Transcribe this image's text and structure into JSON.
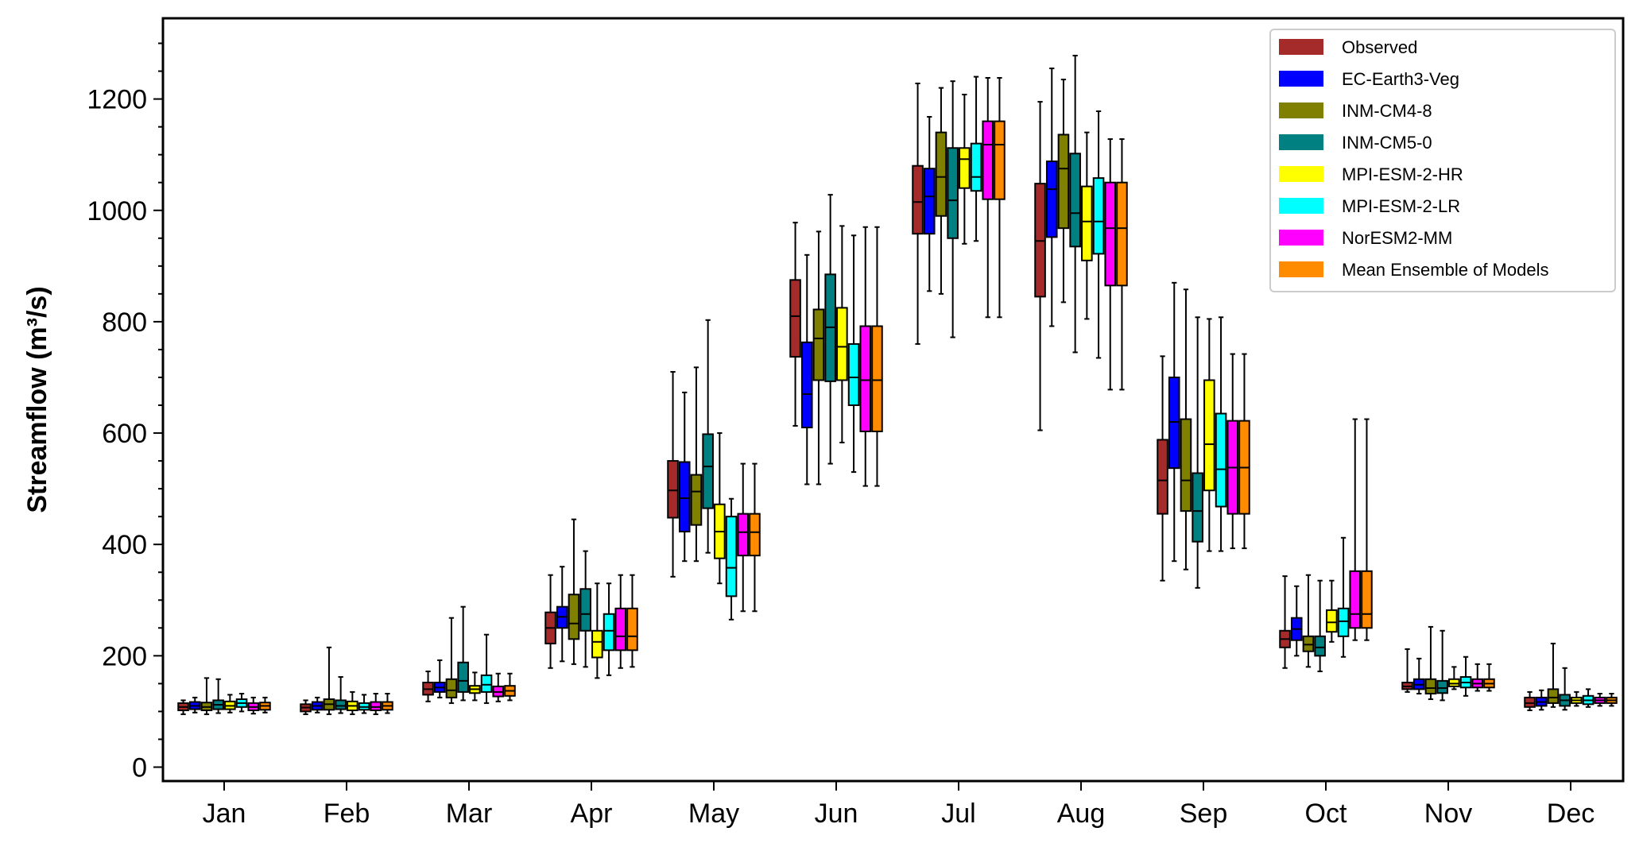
{
  "chart_data": {
    "type": "box",
    "title": "",
    "xlabel": "",
    "ylabel": "Streamflow (m³/s)",
    "ylim": [
      -25,
      1345
    ],
    "yticks": [
      0,
      200,
      400,
      600,
      800,
      1000,
      1200
    ],
    "yticks_minor_step": 50,
    "grid": false,
    "legend": {
      "position": "top-right"
    },
    "categories": [
      "Jan",
      "Feb",
      "Mar",
      "Apr",
      "May",
      "Jun",
      "Jul",
      "Aug",
      "Sep",
      "Oct",
      "Nov",
      "Dec"
    ],
    "series": [
      {
        "name": "Observed",
        "color": "#a52a2a",
        "boxes": [
          {
            "whislo": 95,
            "q1": 102,
            "med": 108,
            "q3": 115,
            "whishi": 120
          },
          {
            "whislo": 95,
            "q1": 100,
            "med": 107,
            "q3": 113,
            "whishi": 120
          },
          {
            "whislo": 118,
            "q1": 130,
            "med": 140,
            "q3": 152,
            "whishi": 172
          },
          {
            "whislo": 178,
            "q1": 222,
            "med": 250,
            "q3": 278,
            "whishi": 345
          },
          {
            "whislo": 342,
            "q1": 448,
            "med": 497,
            "q3": 550,
            "whishi": 710
          },
          {
            "whislo": 613,
            "q1": 737,
            "med": 810,
            "q3": 875,
            "whishi": 978
          },
          {
            "whislo": 760,
            "q1": 958,
            "med": 1015,
            "q3": 1080,
            "whishi": 1228
          },
          {
            "whislo": 605,
            "q1": 845,
            "med": 945,
            "q3": 1048,
            "whishi": 1195
          },
          {
            "whislo": 335,
            "q1": 455,
            "med": 515,
            "q3": 588,
            "whishi": 738
          },
          {
            "whislo": 178,
            "q1": 215,
            "med": 230,
            "q3": 245,
            "whishi": 343
          },
          {
            "whislo": 135,
            "q1": 140,
            "med": 145,
            "q3": 152,
            "whishi": 212
          },
          {
            "whislo": 102,
            "q1": 108,
            "med": 115,
            "q3": 125,
            "whishi": 135
          }
        ]
      },
      {
        "name": "EC-Earth3-Veg",
        "color": "#0000ff",
        "boxes": [
          {
            "whislo": 98,
            "q1": 104,
            "med": 110,
            "q3": 117,
            "whishi": 125
          },
          {
            "whislo": 98,
            "q1": 103,
            "med": 110,
            "q3": 117,
            "whishi": 125
          },
          {
            "whislo": 125,
            "q1": 135,
            "med": 143,
            "q3": 152,
            "whishi": 192
          },
          {
            "whislo": 190,
            "q1": 250,
            "med": 270,
            "q3": 288,
            "whishi": 360
          },
          {
            "whislo": 370,
            "q1": 423,
            "med": 483,
            "q3": 548,
            "whishi": 673
          },
          {
            "whislo": 508,
            "q1": 610,
            "med": 670,
            "q3": 763,
            "whishi": 920
          },
          {
            "whislo": 855,
            "q1": 958,
            "med": 1025,
            "q3": 1075,
            "whishi": 1168
          },
          {
            "whislo": 792,
            "q1": 952,
            "med": 1038,
            "q3": 1088,
            "whishi": 1255
          },
          {
            "whislo": 370,
            "q1": 537,
            "med": 620,
            "q3": 700,
            "whishi": 870
          },
          {
            "whislo": 200,
            "q1": 228,
            "med": 248,
            "q3": 268,
            "whishi": 325
          },
          {
            "whislo": 132,
            "q1": 140,
            "med": 148,
            "q3": 158,
            "whishi": 195
          },
          {
            "whislo": 103,
            "q1": 110,
            "med": 117,
            "q3": 125,
            "whishi": 138
          }
        ]
      },
      {
        "name": "INM-CM4-8",
        "color": "#808000",
        "boxes": [
          {
            "whislo": 95,
            "q1": 102,
            "med": 108,
            "q3": 116,
            "whishi": 160
          },
          {
            "whislo": 95,
            "q1": 103,
            "med": 113,
            "q3": 122,
            "whishi": 215
          },
          {
            "whislo": 115,
            "q1": 125,
            "med": 138,
            "q3": 158,
            "whishi": 268
          },
          {
            "whislo": 185,
            "q1": 230,
            "med": 258,
            "q3": 310,
            "whishi": 445
          },
          {
            "whislo": 370,
            "q1": 435,
            "med": 495,
            "q3": 525,
            "whishi": 718
          },
          {
            "whislo": 508,
            "q1": 695,
            "med": 770,
            "q3": 822,
            "whishi": 962
          },
          {
            "whislo": 850,
            "q1": 990,
            "med": 1060,
            "q3": 1140,
            "whishi": 1220
          },
          {
            "whislo": 835,
            "q1": 968,
            "med": 1075,
            "q3": 1136,
            "whishi": 1235
          },
          {
            "whislo": 355,
            "q1": 460,
            "med": 515,
            "q3": 625,
            "whishi": 858
          },
          {
            "whislo": 180,
            "q1": 208,
            "med": 220,
            "q3": 235,
            "whishi": 345
          },
          {
            "whislo": 122,
            "q1": 132,
            "med": 142,
            "q3": 158,
            "whishi": 252
          },
          {
            "whislo": 108,
            "q1": 115,
            "med": 125,
            "q3": 140,
            "whishi": 222
          }
        ]
      },
      {
        "name": "INM-CM5-0",
        "color": "#008080",
        "boxes": [
          {
            "whislo": 97,
            "q1": 104,
            "med": 112,
            "q3": 120,
            "whishi": 158
          },
          {
            "whislo": 97,
            "q1": 104,
            "med": 110,
            "q3": 120,
            "whishi": 162
          },
          {
            "whislo": 120,
            "q1": 135,
            "med": 155,
            "q3": 188,
            "whishi": 288
          },
          {
            "whislo": 180,
            "q1": 245,
            "med": 275,
            "q3": 320,
            "whishi": 388
          },
          {
            "whislo": 385,
            "q1": 465,
            "med": 540,
            "q3": 598,
            "whishi": 803
          },
          {
            "whislo": 545,
            "q1": 693,
            "med": 790,
            "q3": 885,
            "whishi": 1028
          },
          {
            "whislo": 772,
            "q1": 950,
            "med": 1018,
            "q3": 1112,
            "whishi": 1232
          },
          {
            "whislo": 745,
            "q1": 935,
            "med": 995,
            "q3": 1102,
            "whishi": 1278
          },
          {
            "whislo": 322,
            "q1": 405,
            "med": 460,
            "q3": 528,
            "whishi": 808
          },
          {
            "whislo": 172,
            "q1": 200,
            "med": 215,
            "q3": 235,
            "whishi": 335
          },
          {
            "whislo": 120,
            "q1": 133,
            "med": 142,
            "q3": 155,
            "whishi": 245
          },
          {
            "whislo": 103,
            "q1": 110,
            "med": 120,
            "q3": 130,
            "whishi": 178
          }
        ]
      },
      {
        "name": "MPI-ESM-2-HR",
        "color": "#ffff00",
        "boxes": [
          {
            "whislo": 98,
            "q1": 104,
            "med": 110,
            "q3": 118,
            "whishi": 130
          },
          {
            "whislo": 95,
            "q1": 102,
            "med": 110,
            "q3": 118,
            "whishi": 135
          },
          {
            "whislo": 120,
            "q1": 133,
            "med": 140,
            "q3": 146,
            "whishi": 170
          },
          {
            "whislo": 160,
            "q1": 197,
            "med": 225,
            "q3": 245,
            "whishi": 330
          },
          {
            "whislo": 330,
            "q1": 375,
            "med": 423,
            "q3": 472,
            "whishi": 600
          },
          {
            "whislo": 583,
            "q1": 695,
            "med": 755,
            "q3": 825,
            "whishi": 972
          },
          {
            "whislo": 940,
            "q1": 1040,
            "med": 1092,
            "q3": 1112,
            "whishi": 1208
          },
          {
            "whislo": 805,
            "q1": 910,
            "med": 980,
            "q3": 1043,
            "whishi": 1140
          },
          {
            "whislo": 388,
            "q1": 497,
            "med": 580,
            "q3": 695,
            "whishi": 805
          },
          {
            "whislo": 225,
            "q1": 243,
            "med": 260,
            "q3": 282,
            "whishi": 335
          },
          {
            "whislo": 140,
            "q1": 145,
            "med": 150,
            "q3": 158,
            "whishi": 180
          },
          {
            "whislo": 110,
            "q1": 115,
            "med": 120,
            "q3": 125,
            "whishi": 135
          }
        ]
      },
      {
        "name": "MPI-ESM-2-LR",
        "color": "#00ffff",
        "boxes": [
          {
            "whislo": 100,
            "q1": 108,
            "med": 115,
            "q3": 122,
            "whishi": 132
          },
          {
            "whislo": 97,
            "q1": 103,
            "med": 108,
            "q3": 115,
            "whishi": 130
          },
          {
            "whislo": 115,
            "q1": 135,
            "med": 148,
            "q3": 165,
            "whishi": 238
          },
          {
            "whislo": 165,
            "q1": 210,
            "med": 245,
            "q3": 275,
            "whishi": 330
          },
          {
            "whislo": 265,
            "q1": 307,
            "med": 358,
            "q3": 450,
            "whishi": 482
          },
          {
            "whislo": 530,
            "q1": 650,
            "med": 700,
            "q3": 760,
            "whishi": 955
          },
          {
            "whislo": 945,
            "q1": 1035,
            "med": 1060,
            "q3": 1120,
            "whishi": 1240
          },
          {
            "whislo": 735,
            "q1": 922,
            "med": 980,
            "q3": 1058,
            "whishi": 1178
          },
          {
            "whislo": 388,
            "q1": 468,
            "med": 535,
            "q3": 635,
            "whishi": 808
          },
          {
            "whislo": 198,
            "q1": 235,
            "med": 262,
            "q3": 285,
            "whishi": 412
          },
          {
            "whislo": 128,
            "q1": 143,
            "med": 152,
            "q3": 162,
            "whishi": 198
          },
          {
            "whislo": 108,
            "q1": 113,
            "med": 120,
            "q3": 128,
            "whishi": 140
          }
        ]
      },
      {
        "name": "NorESM2-MM",
        "color": "#ff00ff",
        "boxes": [
          {
            "whislo": 96,
            "q1": 102,
            "med": 108,
            "q3": 115,
            "whishi": 125
          },
          {
            "whislo": 95,
            "q1": 102,
            "med": 108,
            "q3": 117,
            "whishi": 132
          },
          {
            "whislo": 118,
            "q1": 127,
            "med": 135,
            "q3": 145,
            "whishi": 168
          },
          {
            "whislo": 178,
            "q1": 210,
            "med": 235,
            "q3": 285,
            "whishi": 345
          },
          {
            "whislo": 280,
            "q1": 380,
            "med": 422,
            "q3": 455,
            "whishi": 545
          },
          {
            "whislo": 505,
            "q1": 603,
            "med": 695,
            "q3": 792,
            "whishi": 970
          },
          {
            "whislo": 808,
            "q1": 1020,
            "med": 1118,
            "q3": 1160,
            "whishi": 1238
          },
          {
            "whislo": 678,
            "q1": 865,
            "med": 968,
            "q3": 1050,
            "whishi": 1128
          },
          {
            "whislo": 393,
            "q1": 455,
            "med": 538,
            "q3": 622,
            "whishi": 742
          },
          {
            "whislo": 228,
            "q1": 250,
            "med": 275,
            "q3": 352,
            "whishi": 625
          },
          {
            "whislo": 137,
            "q1": 143,
            "med": 150,
            "q3": 158,
            "whishi": 185
          },
          {
            "whislo": 110,
            "q1": 115,
            "med": 120,
            "q3": 125,
            "whishi": 132
          }
        ]
      },
      {
        "name": "Mean Ensemble of Models",
        "color": "#ff8c00",
        "boxes": [
          {
            "whislo": 98,
            "q1": 103,
            "med": 110,
            "q3": 116,
            "whishi": 125
          },
          {
            "whislo": 97,
            "q1": 103,
            "med": 110,
            "q3": 117,
            "whishi": 132
          },
          {
            "whislo": 120,
            "q1": 128,
            "med": 137,
            "q3": 146,
            "whishi": 168
          },
          {
            "whislo": 180,
            "q1": 210,
            "med": 235,
            "q3": 285,
            "whishi": 345
          },
          {
            "whislo": 280,
            "q1": 380,
            "med": 422,
            "q3": 455,
            "whishi": 545
          },
          {
            "whislo": 505,
            "q1": 603,
            "med": 695,
            "q3": 792,
            "whishi": 970
          },
          {
            "whislo": 808,
            "q1": 1020,
            "med": 1118,
            "q3": 1160,
            "whishi": 1238
          },
          {
            "whislo": 678,
            "q1": 865,
            "med": 968,
            "q3": 1050,
            "whishi": 1128
          },
          {
            "whislo": 393,
            "q1": 455,
            "med": 538,
            "q3": 622,
            "whishi": 742
          },
          {
            "whislo": 228,
            "q1": 250,
            "med": 275,
            "q3": 352,
            "whishi": 625
          },
          {
            "whislo": 137,
            "q1": 143,
            "med": 150,
            "q3": 158,
            "whishi": 185
          },
          {
            "whislo": 110,
            "q1": 115,
            "med": 120,
            "q3": 125,
            "whishi": 132
          }
        ]
      }
    ]
  }
}
